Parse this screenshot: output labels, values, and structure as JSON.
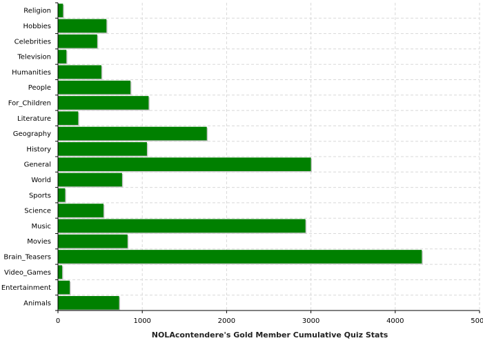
{
  "chart_data": {
    "type": "bar",
    "orientation": "horizontal",
    "title": "",
    "xlabel": "NOLAcontendere's Gold Member Cumulative Quiz Stats",
    "ylabel": "",
    "xlim": [
      0,
      5000
    ],
    "xticks": [
      "0",
      "1000",
      "2000",
      "3000",
      "4000",
      "5000"
    ],
    "grid": true,
    "legend": "none",
    "bar_color": "#008000",
    "categories": [
      "Religion",
      "Hobbies",
      "Celebrities",
      "Television",
      "Humanities",
      "People",
      "For_Children",
      "Literature",
      "Geography",
      "History",
      "General",
      "World",
      "Sports",
      "Science",
      "Music",
      "Movies",
      "Brain_Teasers",
      "Video_Games",
      "Entertainment",
      "Animals"
    ],
    "values": [
      60,
      575,
      465,
      100,
      515,
      860,
      1075,
      240,
      1765,
      1055,
      3000,
      760,
      85,
      540,
      2935,
      825,
      4315,
      50,
      140,
      725
    ]
  }
}
